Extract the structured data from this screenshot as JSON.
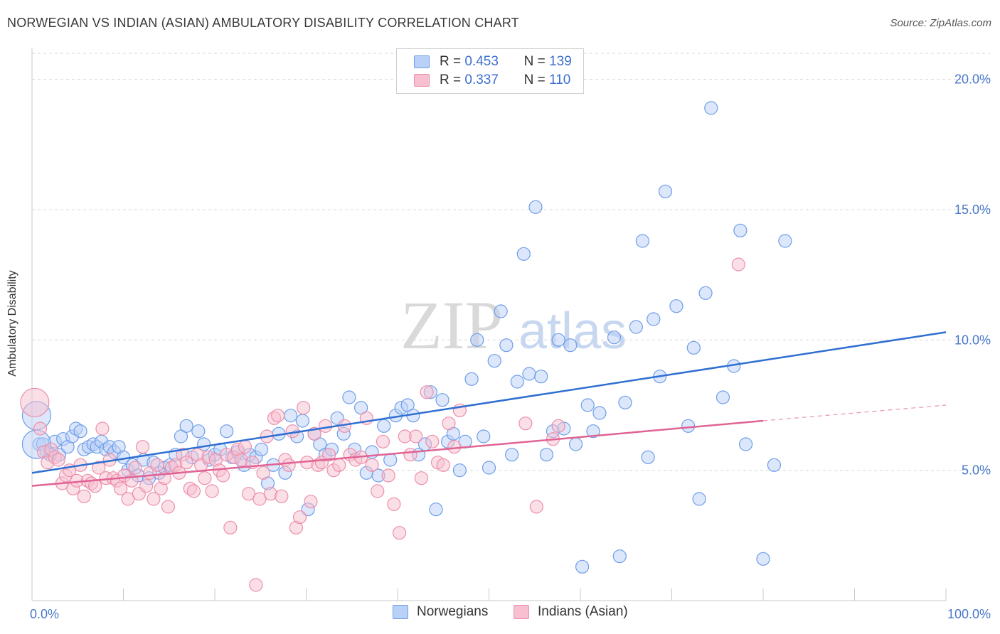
{
  "title": "NORWEGIAN VS INDIAN (ASIAN) AMBULATORY DISABILITY CORRELATION CHART",
  "source": "Source: ZipAtlas.com",
  "watermark": {
    "zip": "ZIP",
    "atlas": "atlas"
  },
  "legend": {
    "rows": [
      {
        "r_label": "R =",
        "r_value": "0.453",
        "n_label": "N =",
        "n_value": "139"
      },
      {
        "r_label": "R =",
        "r_value": "0.337",
        "n_label": "N =",
        "n_value": "110"
      }
    ]
  },
  "colors": {
    "blue_fill": "#b9d0f7",
    "blue_stroke": "#6e9ee8",
    "blue_line": "#2f6fd1",
    "pink_fill": "#f7bfd0",
    "pink_stroke": "#ec8eab",
    "pink_line": "#e06394",
    "axis_label": "#4a78c8",
    "grid": "#d8d8d8"
  },
  "chart_data": {
    "type": "scatter",
    "title": "NORWEGIAN VS INDIAN (ASIAN) AMBULATORY DISABILITY CORRELATION CHART",
    "xlabel": "",
    "ylabel": "Ambulatory Disability",
    "xlim": [
      0,
      100
    ],
    "ylim": [
      0,
      21
    ],
    "x_tick_labels": [
      "0.0%",
      "100.0%"
    ],
    "y_ticks": [
      5,
      10,
      15,
      20
    ],
    "y_tick_labels": [
      "5.0%",
      "10.0%",
      "15.0%",
      "20.0%"
    ],
    "grid": true,
    "legend_position": "top-center",
    "series": [
      {
        "name": "Norwegians",
        "color": "#6e9ee8",
        "trend": {
          "x": [
            0,
            100
          ],
          "y": [
            4.9,
            10.3
          ]
        },
        "big_points": [
          [
            0.5,
            7.1
          ],
          [
            0.5,
            6.0
          ]
        ],
        "points": [
          [
            0.8,
            6.0
          ],
          [
            1.2,
            6.0
          ],
          [
            1.6,
            5.7
          ],
          [
            2.0,
            5.6
          ],
          [
            2.5,
            6.1
          ],
          [
            3.0,
            5.6
          ],
          [
            3.4,
            6.2
          ],
          [
            3.9,
            5.9
          ],
          [
            4.4,
            6.3
          ],
          [
            4.8,
            6.6
          ],
          [
            5.3,
            6.5
          ],
          [
            5.7,
            5.8
          ],
          [
            6.2,
            5.9
          ],
          [
            6.7,
            6.0
          ],
          [
            7.1,
            5.9
          ],
          [
            7.6,
            6.1
          ],
          [
            8.1,
            5.8
          ],
          [
            8.5,
            5.9
          ],
          [
            9.0,
            5.7
          ],
          [
            9.5,
            5.9
          ],
          [
            10.0,
            5.5
          ],
          [
            10.5,
            5.0
          ],
          [
            11.0,
            5.2
          ],
          [
            11.6,
            4.8
          ],
          [
            12.2,
            5.4
          ],
          [
            12.8,
            4.7
          ],
          [
            13.3,
            5.3
          ],
          [
            13.9,
            4.9
          ],
          [
            14.5,
            5.1
          ],
          [
            15.1,
            5.2
          ],
          [
            15.7,
            5.6
          ],
          [
            16.3,
            6.3
          ],
          [
            16.9,
            6.7
          ],
          [
            17.5,
            5.5
          ],
          [
            18.2,
            6.5
          ],
          [
            18.8,
            6.0
          ],
          [
            19.4,
            5.4
          ],
          [
            20.0,
            5.6
          ],
          [
            20.6,
            5.8
          ],
          [
            21.3,
            6.5
          ],
          [
            21.9,
            5.5
          ],
          [
            22.5,
            5.7
          ],
          [
            23.2,
            5.2
          ],
          [
            23.8,
            5.6
          ],
          [
            24.5,
            5.5
          ],
          [
            25.1,
            5.8
          ],
          [
            25.8,
            4.5
          ],
          [
            26.4,
            5.2
          ],
          [
            27.0,
            6.4
          ],
          [
            27.7,
            4.9
          ],
          [
            28.3,
            7.1
          ],
          [
            29.0,
            6.3
          ],
          [
            29.6,
            6.9
          ],
          [
            30.2,
            3.5
          ],
          [
            30.9,
            6.4
          ],
          [
            31.5,
            6.0
          ],
          [
            32.1,
            5.6
          ],
          [
            32.8,
            5.8
          ],
          [
            33.4,
            7.0
          ],
          [
            34.1,
            6.4
          ],
          [
            34.7,
            7.8
          ],
          [
            35.3,
            5.8
          ],
          [
            36.0,
            7.4
          ],
          [
            36.6,
            4.9
          ],
          [
            37.2,
            5.7
          ],
          [
            37.9,
            4.8
          ],
          [
            38.5,
            6.7
          ],
          [
            39.2,
            5.4
          ],
          [
            39.8,
            7.1
          ],
          [
            40.4,
            7.4
          ],
          [
            41.1,
            7.5
          ],
          [
            41.7,
            7.1
          ],
          [
            42.3,
            5.6
          ],
          [
            43.0,
            6.0
          ],
          [
            43.6,
            8.0
          ],
          [
            44.2,
            3.5
          ],
          [
            44.9,
            7.7
          ],
          [
            45.5,
            6.1
          ],
          [
            46.1,
            6.4
          ],
          [
            46.8,
            5.0
          ],
          [
            47.4,
            6.1
          ],
          [
            48.1,
            8.5
          ],
          [
            48.7,
            10.0
          ],
          [
            49.4,
            6.3
          ],
          [
            50.0,
            5.1
          ],
          [
            50.6,
            9.2
          ],
          [
            51.3,
            11.1
          ],
          [
            51.9,
            9.8
          ],
          [
            52.5,
            5.6
          ],
          [
            53.1,
            8.4
          ],
          [
            53.8,
            13.3
          ],
          [
            54.4,
            8.7
          ],
          [
            55.1,
            15.1
          ],
          [
            55.7,
            8.6
          ],
          [
            56.3,
            5.6
          ],
          [
            57.0,
            6.5
          ],
          [
            57.6,
            10.0
          ],
          [
            58.2,
            6.6
          ],
          [
            58.9,
            9.8
          ],
          [
            59.5,
            6.0
          ],
          [
            60.2,
            1.3
          ],
          [
            60.8,
            7.5
          ],
          [
            61.4,
            6.5
          ],
          [
            62.1,
            7.2
          ],
          [
            63.7,
            10.1
          ],
          [
            64.3,
            1.7
          ],
          [
            64.9,
            7.6
          ],
          [
            66.1,
            10.5
          ],
          [
            66.8,
            13.8
          ],
          [
            67.4,
            5.5
          ],
          [
            68.0,
            10.8
          ],
          [
            68.7,
            8.6
          ],
          [
            69.3,
            15.7
          ],
          [
            70.5,
            11.3
          ],
          [
            71.8,
            6.7
          ],
          [
            72.4,
            9.7
          ],
          [
            73.0,
            3.9
          ],
          [
            73.7,
            11.8
          ],
          [
            74.3,
            18.9
          ],
          [
            75.6,
            7.8
          ],
          [
            76.8,
            9.0
          ],
          [
            77.5,
            14.2
          ],
          [
            78.1,
            6.0
          ],
          [
            80.0,
            1.6
          ],
          [
            81.2,
            5.2
          ],
          [
            82.4,
            13.8
          ]
        ]
      },
      {
        "name": "Indians (Asian)",
        "color": "#ec8eab",
        "trend": {
          "x": [
            0,
            80
          ],
          "y": [
            4.4,
            6.9
          ]
        },
        "trend_dashed": {
          "x": [
            80,
            100
          ],
          "y": [
            6.9,
            7.5
          ]
        },
        "big_points": [
          [
            0.3,
            7.6
          ]
        ],
        "points": [
          [
            0.9,
            6.6
          ],
          [
            1.3,
            5.7
          ],
          [
            1.7,
            5.3
          ],
          [
            2.1,
            5.8
          ],
          [
            2.5,
            5.5
          ],
          [
            2.9,
            5.4
          ],
          [
            3.3,
            4.5
          ],
          [
            3.7,
            4.8
          ],
          [
            4.1,
            5.0
          ],
          [
            4.5,
            4.3
          ],
          [
            4.9,
            4.6
          ],
          [
            5.3,
            5.2
          ],
          [
            5.7,
            4.0
          ],
          [
            6.1,
            4.6
          ],
          [
            6.5,
            4.5
          ],
          [
            6.9,
            4.4
          ],
          [
            7.3,
            5.1
          ],
          [
            7.7,
            6.6
          ],
          [
            8.1,
            4.7
          ],
          [
            8.5,
            5.4
          ],
          [
            8.9,
            4.7
          ],
          [
            9.3,
            4.6
          ],
          [
            9.7,
            4.3
          ],
          [
            10.1,
            4.8
          ],
          [
            10.5,
            3.9
          ],
          [
            10.9,
            4.6
          ],
          [
            11.3,
            5.1
          ],
          [
            11.7,
            4.1
          ],
          [
            12.1,
            5.9
          ],
          [
            12.5,
            4.4
          ],
          [
            12.9,
            4.9
          ],
          [
            13.3,
            3.9
          ],
          [
            13.7,
            5.2
          ],
          [
            14.1,
            4.3
          ],
          [
            14.5,
            4.7
          ],
          [
            14.9,
            3.6
          ],
          [
            15.3,
            5.1
          ],
          [
            15.7,
            5.2
          ],
          [
            16.1,
            4.9
          ],
          [
            16.5,
            5.6
          ],
          [
            16.9,
            5.3
          ],
          [
            17.3,
            4.3
          ],
          [
            17.7,
            4.2
          ],
          [
            18.1,
            5.6
          ],
          [
            18.5,
            5.2
          ],
          [
            18.9,
            4.7
          ],
          [
            19.3,
            5.5
          ],
          [
            19.7,
            4.2
          ],
          [
            20.1,
            5.4
          ],
          [
            20.5,
            5.0
          ],
          [
            20.9,
            4.8
          ],
          [
            21.3,
            5.6
          ],
          [
            21.7,
            2.8
          ],
          [
            22.1,
            5.5
          ],
          [
            22.5,
            5.8
          ],
          [
            22.9,
            5.4
          ],
          [
            23.3,
            5.9
          ],
          [
            23.7,
            4.1
          ],
          [
            24.1,
            5.3
          ],
          [
            24.5,
            0.6
          ],
          [
            24.9,
            3.9
          ],
          [
            25.3,
            4.9
          ],
          [
            25.7,
            6.3
          ],
          [
            26.1,
            4.1
          ],
          [
            26.5,
            7.0
          ],
          [
            26.9,
            7.1
          ],
          [
            27.3,
            4.0
          ],
          [
            27.7,
            5.4
          ],
          [
            28.1,
            5.2
          ],
          [
            28.5,
            6.5
          ],
          [
            28.9,
            2.8
          ],
          [
            29.3,
            3.2
          ],
          [
            29.7,
            7.4
          ],
          [
            30.1,
            5.3
          ],
          [
            30.5,
            3.8
          ],
          [
            30.9,
            6.4
          ],
          [
            31.3,
            5.2
          ],
          [
            31.7,
            5.3
          ],
          [
            32.1,
            6.7
          ],
          [
            32.5,
            5.6
          ],
          [
            33.0,
            5.0
          ],
          [
            33.6,
            5.2
          ],
          [
            34.2,
            6.7
          ],
          [
            34.8,
            5.6
          ],
          [
            35.4,
            5.4
          ],
          [
            36.0,
            5.5
          ],
          [
            36.6,
            7.0
          ],
          [
            37.2,
            5.2
          ],
          [
            37.8,
            4.2
          ],
          [
            38.4,
            6.1
          ],
          [
            39.0,
            4.8
          ],
          [
            39.6,
            3.7
          ],
          [
            40.2,
            2.6
          ],
          [
            40.8,
            6.3
          ],
          [
            41.4,
            5.6
          ],
          [
            42.0,
            6.3
          ],
          [
            42.6,
            4.7
          ],
          [
            43.2,
            8.0
          ],
          [
            43.8,
            6.1
          ],
          [
            44.4,
            5.3
          ],
          [
            45.0,
            5.2
          ],
          [
            45.6,
            6.8
          ],
          [
            46.2,
            5.9
          ],
          [
            46.8,
            7.3
          ],
          [
            54.0,
            6.8
          ],
          [
            55.2,
            3.6
          ],
          [
            57.0,
            6.2
          ],
          [
            57.6,
            6.7
          ],
          [
            77.3,
            12.9
          ]
        ]
      }
    ]
  },
  "bottom_legend": {
    "items": [
      "Norwegians",
      "Indians (Asian)"
    ]
  }
}
